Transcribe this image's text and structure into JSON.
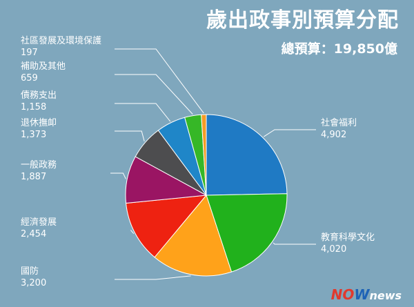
{
  "header": {
    "title": "歲出政事別預算分配",
    "total_label": "總預算：",
    "total_value": "19,850億"
  },
  "logo": {
    "part1": "N",
    "part2": "O",
    "part3": "W",
    "part4": "news"
  },
  "chart_data": {
    "type": "pie",
    "title": "歲出政事別預算分配",
    "unit": "億",
    "slices": [
      {
        "label": "社會福利",
        "value": 4902,
        "value_text": "4,902",
        "color": "#1f7ac4"
      },
      {
        "label": "教育科學文化",
        "value": 4020,
        "value_text": "4,020",
        "color": "#21b11c"
      },
      {
        "label": "國防",
        "value": 3200,
        "value_text": "3,200",
        "color": "#ffa21a"
      },
      {
        "label": "經濟發展",
        "value": 2454,
        "value_text": "2,454",
        "color": "#ee2211"
      },
      {
        "label": "一般政務",
        "value": 1887,
        "value_text": "1,887",
        "color": "#9a1563"
      },
      {
        "label": "退休撫卹",
        "value": 1373,
        "value_text": "1,373",
        "color": "#4d4d4f"
      },
      {
        "label": "債務支出",
        "value": 1158,
        "value_text": "1,158",
        "color": "#1f86c8"
      },
      {
        "label": "補助及其他",
        "value": 659,
        "value_text": "659",
        "color": "#36b727"
      },
      {
        "label": "社區發展及環境保護",
        "value": 197,
        "value_text": "197",
        "color": "#f59b25"
      }
    ]
  }
}
